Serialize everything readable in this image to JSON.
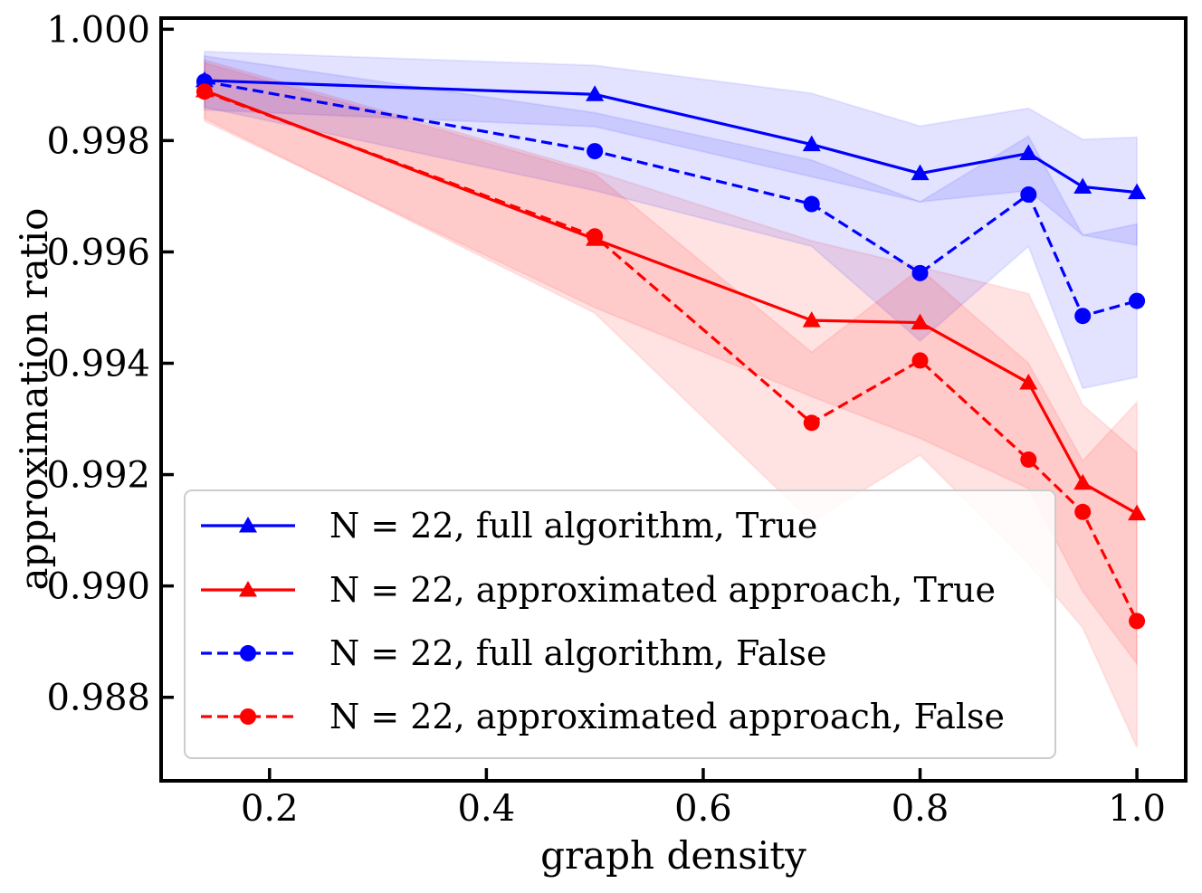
{
  "chart_data": {
    "type": "line",
    "xlabel": "graph density",
    "ylabel": "approximation ratio",
    "xlim": [
      0.1,
      1.045
    ],
    "ylim": [
      0.9865,
      1.0002
    ],
    "xticks": [
      0.2,
      0.4,
      0.6,
      0.8,
      1.0
    ],
    "xtick_labels": [
      "0.2",
      "0.4",
      "0.6",
      "0.8",
      "1.0"
    ],
    "yticks": [
      0.988,
      0.99,
      0.992,
      0.994,
      0.996,
      0.998,
      1.0
    ],
    "ytick_labels": [
      "0.988",
      "0.990",
      "0.992",
      "0.994",
      "0.996",
      "0.998",
      "1.000"
    ],
    "grid": false,
    "legend_position": "lower-left",
    "x": [
      0.14,
      0.5,
      0.7,
      0.8,
      0.9,
      0.95,
      1.0
    ],
    "series": [
      {
        "name": "N = 22, full algorithm, True",
        "color": "#0000ff",
        "line_style": "solid",
        "marker": "triangle",
        "values": [
          0.99908,
          0.99883,
          0.99793,
          0.99741,
          0.99777,
          0.99717,
          0.99707
        ],
        "band_lower": [
          0.99855,
          0.99825,
          0.99735,
          0.9969,
          0.9971,
          0.9963,
          0.99612
        ],
        "band_upper": [
          0.9996,
          0.99935,
          0.99885,
          0.99826,
          0.99858,
          0.99802,
          0.99806
        ]
      },
      {
        "name": "N = 22, approximated approach, True",
        "color": "#ff0000",
        "line_style": "solid",
        "marker": "triangle",
        "values": [
          0.9989,
          0.99623,
          0.99477,
          0.99473,
          0.99365,
          0.99185,
          0.9913
        ],
        "band_lower": [
          0.99835,
          0.995,
          0.9934,
          0.99265,
          0.99175,
          0.9899,
          0.9886
        ],
        "band_upper": [
          0.99945,
          0.99745,
          0.9962,
          0.99573,
          0.99525,
          0.99325,
          0.9924
        ]
      },
      {
        "name": "N = 22, full algorithm, False",
        "color": "#0000ff",
        "line_style": "dashed",
        "marker": "circle",
        "values": [
          0.99906,
          0.99781,
          0.99686,
          0.99562,
          0.99703,
          0.99485,
          0.99512
        ],
        "band_lower": [
          0.9986,
          0.9971,
          0.9961,
          0.9944,
          0.9961,
          0.99355,
          0.99375
        ],
        "band_upper": [
          0.99952,
          0.9985,
          0.99765,
          0.9969,
          0.99808,
          0.9963,
          0.9965
        ]
      },
      {
        "name": "N = 22, approximated approach, False",
        "color": "#ff0000",
        "line_style": "dashed",
        "marker": "circle",
        "values": [
          0.99888,
          0.99628,
          0.99293,
          0.99405,
          0.99227,
          0.99133,
          0.98937
        ],
        "band_lower": [
          0.9984,
          0.9949,
          0.99115,
          0.99235,
          0.9904,
          0.98925,
          0.9871
        ],
        "band_upper": [
          0.9994,
          0.9974,
          0.9942,
          0.9957,
          0.994,
          0.99225,
          0.9933
        ]
      }
    ]
  }
}
